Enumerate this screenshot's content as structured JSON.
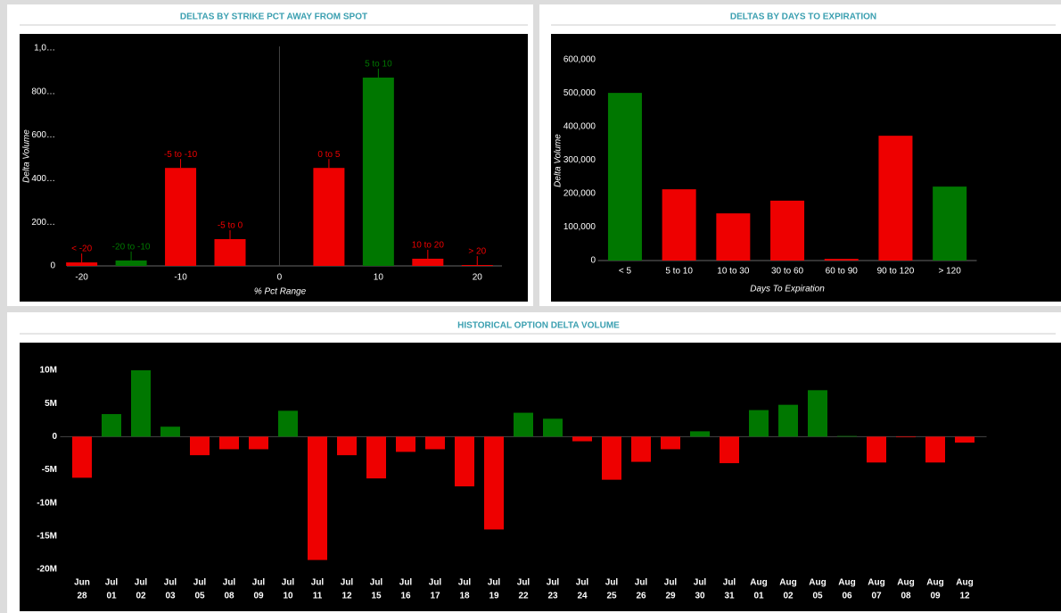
{
  "chart_data": [
    {
      "type": "bar",
      "title": "DELTAS BY STRIKE PCT AWAY FROM SPOT",
      "x_label": "% Pct Range",
      "y_label": "Delta Volume",
      "x": [
        -20,
        -15,
        -10,
        -5,
        5,
        10,
        15,
        20
      ],
      "values": [
        16,
        25,
        450,
        123,
        450,
        865,
        33,
        4
      ],
      "labels": [
        "< -20",
        "-20 to -10",
        "-5 to -10",
        "-5 to 0",
        "0 to 5",
        "5 to 10",
        "10 to 20",
        "> 20"
      ],
      "colors": [
        "#ee0000",
        "#007700",
        "#ee0000",
        "#ee0000",
        "#ee0000",
        "#007700",
        "#ee0000",
        "#ee0000"
      ],
      "xlim": [
        -21.5,
        22.5
      ],
      "xticks": [
        -20,
        -10,
        0,
        10,
        20
      ],
      "ylim": [
        0,
        1000
      ],
      "yticks": [
        0,
        {
          "value": 200,
          "label": "200…"
        },
        {
          "value": 400,
          "label": "400…"
        },
        {
          "value": 600,
          "label": "600…"
        },
        {
          "value": 800,
          "label": "800…"
        },
        {
          "value": 1000,
          "label": "1,0…"
        }
      ]
    },
    {
      "type": "bar",
      "title": "DELTAS BY DAYS TO EXPIRATION",
      "x_label": "Days To Expiration",
      "y_label": "Delta Volume",
      "categories": [
        "< 5",
        "5 to 10",
        "10 to 30",
        "30 to 60",
        "60 to 90",
        "90 to 120",
        "> 120"
      ],
      "values": [
        501000,
        213000,
        141000,
        179000,
        5000,
        373000,
        221000
      ],
      "colors": [
        "#007700",
        "#ee0000",
        "#ee0000",
        "#ee0000",
        "#ee0000",
        "#ee0000",
        "#007700"
      ],
      "ylim": [
        0,
        600000
      ],
      "yticks": [
        0,
        {
          "value": 100000,
          "label": "100,000"
        },
        {
          "value": 200000,
          "label": "200,000"
        },
        {
          "value": 300000,
          "label": "300,000"
        },
        {
          "value": 400000,
          "label": "400,000"
        },
        {
          "value": 500000,
          "label": "500,000"
        },
        {
          "value": 600000,
          "label": "600,000"
        }
      ]
    },
    {
      "type": "bar",
      "title": "HISTORICAL OPTION DELTA VOLUME",
      "categories": [
        [
          "Jun",
          "28"
        ],
        [
          "Jul",
          "01"
        ],
        [
          "Jul",
          "02"
        ],
        [
          "Jul",
          "03"
        ],
        [
          "Jul",
          "05"
        ],
        [
          "Jul",
          "08"
        ],
        [
          "Jul",
          "09"
        ],
        [
          "Jul",
          "10"
        ],
        [
          "Jul",
          "11"
        ],
        [
          "Jul",
          "12"
        ],
        [
          "Jul",
          "15"
        ],
        [
          "Jul",
          "16"
        ],
        [
          "Jul",
          "17"
        ],
        [
          "Jul",
          "18"
        ],
        [
          "Jul",
          "19"
        ],
        [
          "Jul",
          "22"
        ],
        [
          "Jul",
          "23"
        ],
        [
          "Jul",
          "24"
        ],
        [
          "Jul",
          "25"
        ],
        [
          "Jul",
          "26"
        ],
        [
          "Jul",
          "29"
        ],
        [
          "Jul",
          "30"
        ],
        [
          "Jul",
          "31"
        ],
        [
          "Aug",
          "01"
        ],
        [
          "Aug",
          "02"
        ],
        [
          "Aug",
          "05"
        ],
        [
          "Aug",
          "06"
        ],
        [
          "Aug",
          "07"
        ],
        [
          "Aug",
          "08"
        ],
        [
          "Aug",
          "09"
        ],
        [
          "Aug",
          "12"
        ]
      ],
      "values": [
        -6.2,
        3.4,
        10.0,
        1.5,
        -2.8,
        -1.9,
        -1.9,
        3.9,
        -18.6,
        -2.8,
        -6.3,
        -2.3,
        -1.9,
        -7.5,
        -14.0,
        3.6,
        2.7,
        -0.7,
        -6.5,
        -3.8,
        -1.9,
        0.8,
        -4.0,
        4.0,
        4.8,
        7.0,
        0.1,
        -3.9,
        -0.1,
        -3.9,
        -0.9
      ],
      "positive_color": "#007700",
      "negative_color": "#ee0000",
      "ylim": [
        -20,
        10
      ],
      "yticks": [
        {
          "value": -20,
          "label": "-20M"
        },
        {
          "value": -15,
          "label": "-15M"
        },
        {
          "value": -10,
          "label": "-10M"
        },
        {
          "value": -5,
          "label": "-5M"
        },
        0,
        {
          "value": 5,
          "label": "5M"
        },
        {
          "value": 10,
          "label": "10M"
        }
      ]
    }
  ]
}
